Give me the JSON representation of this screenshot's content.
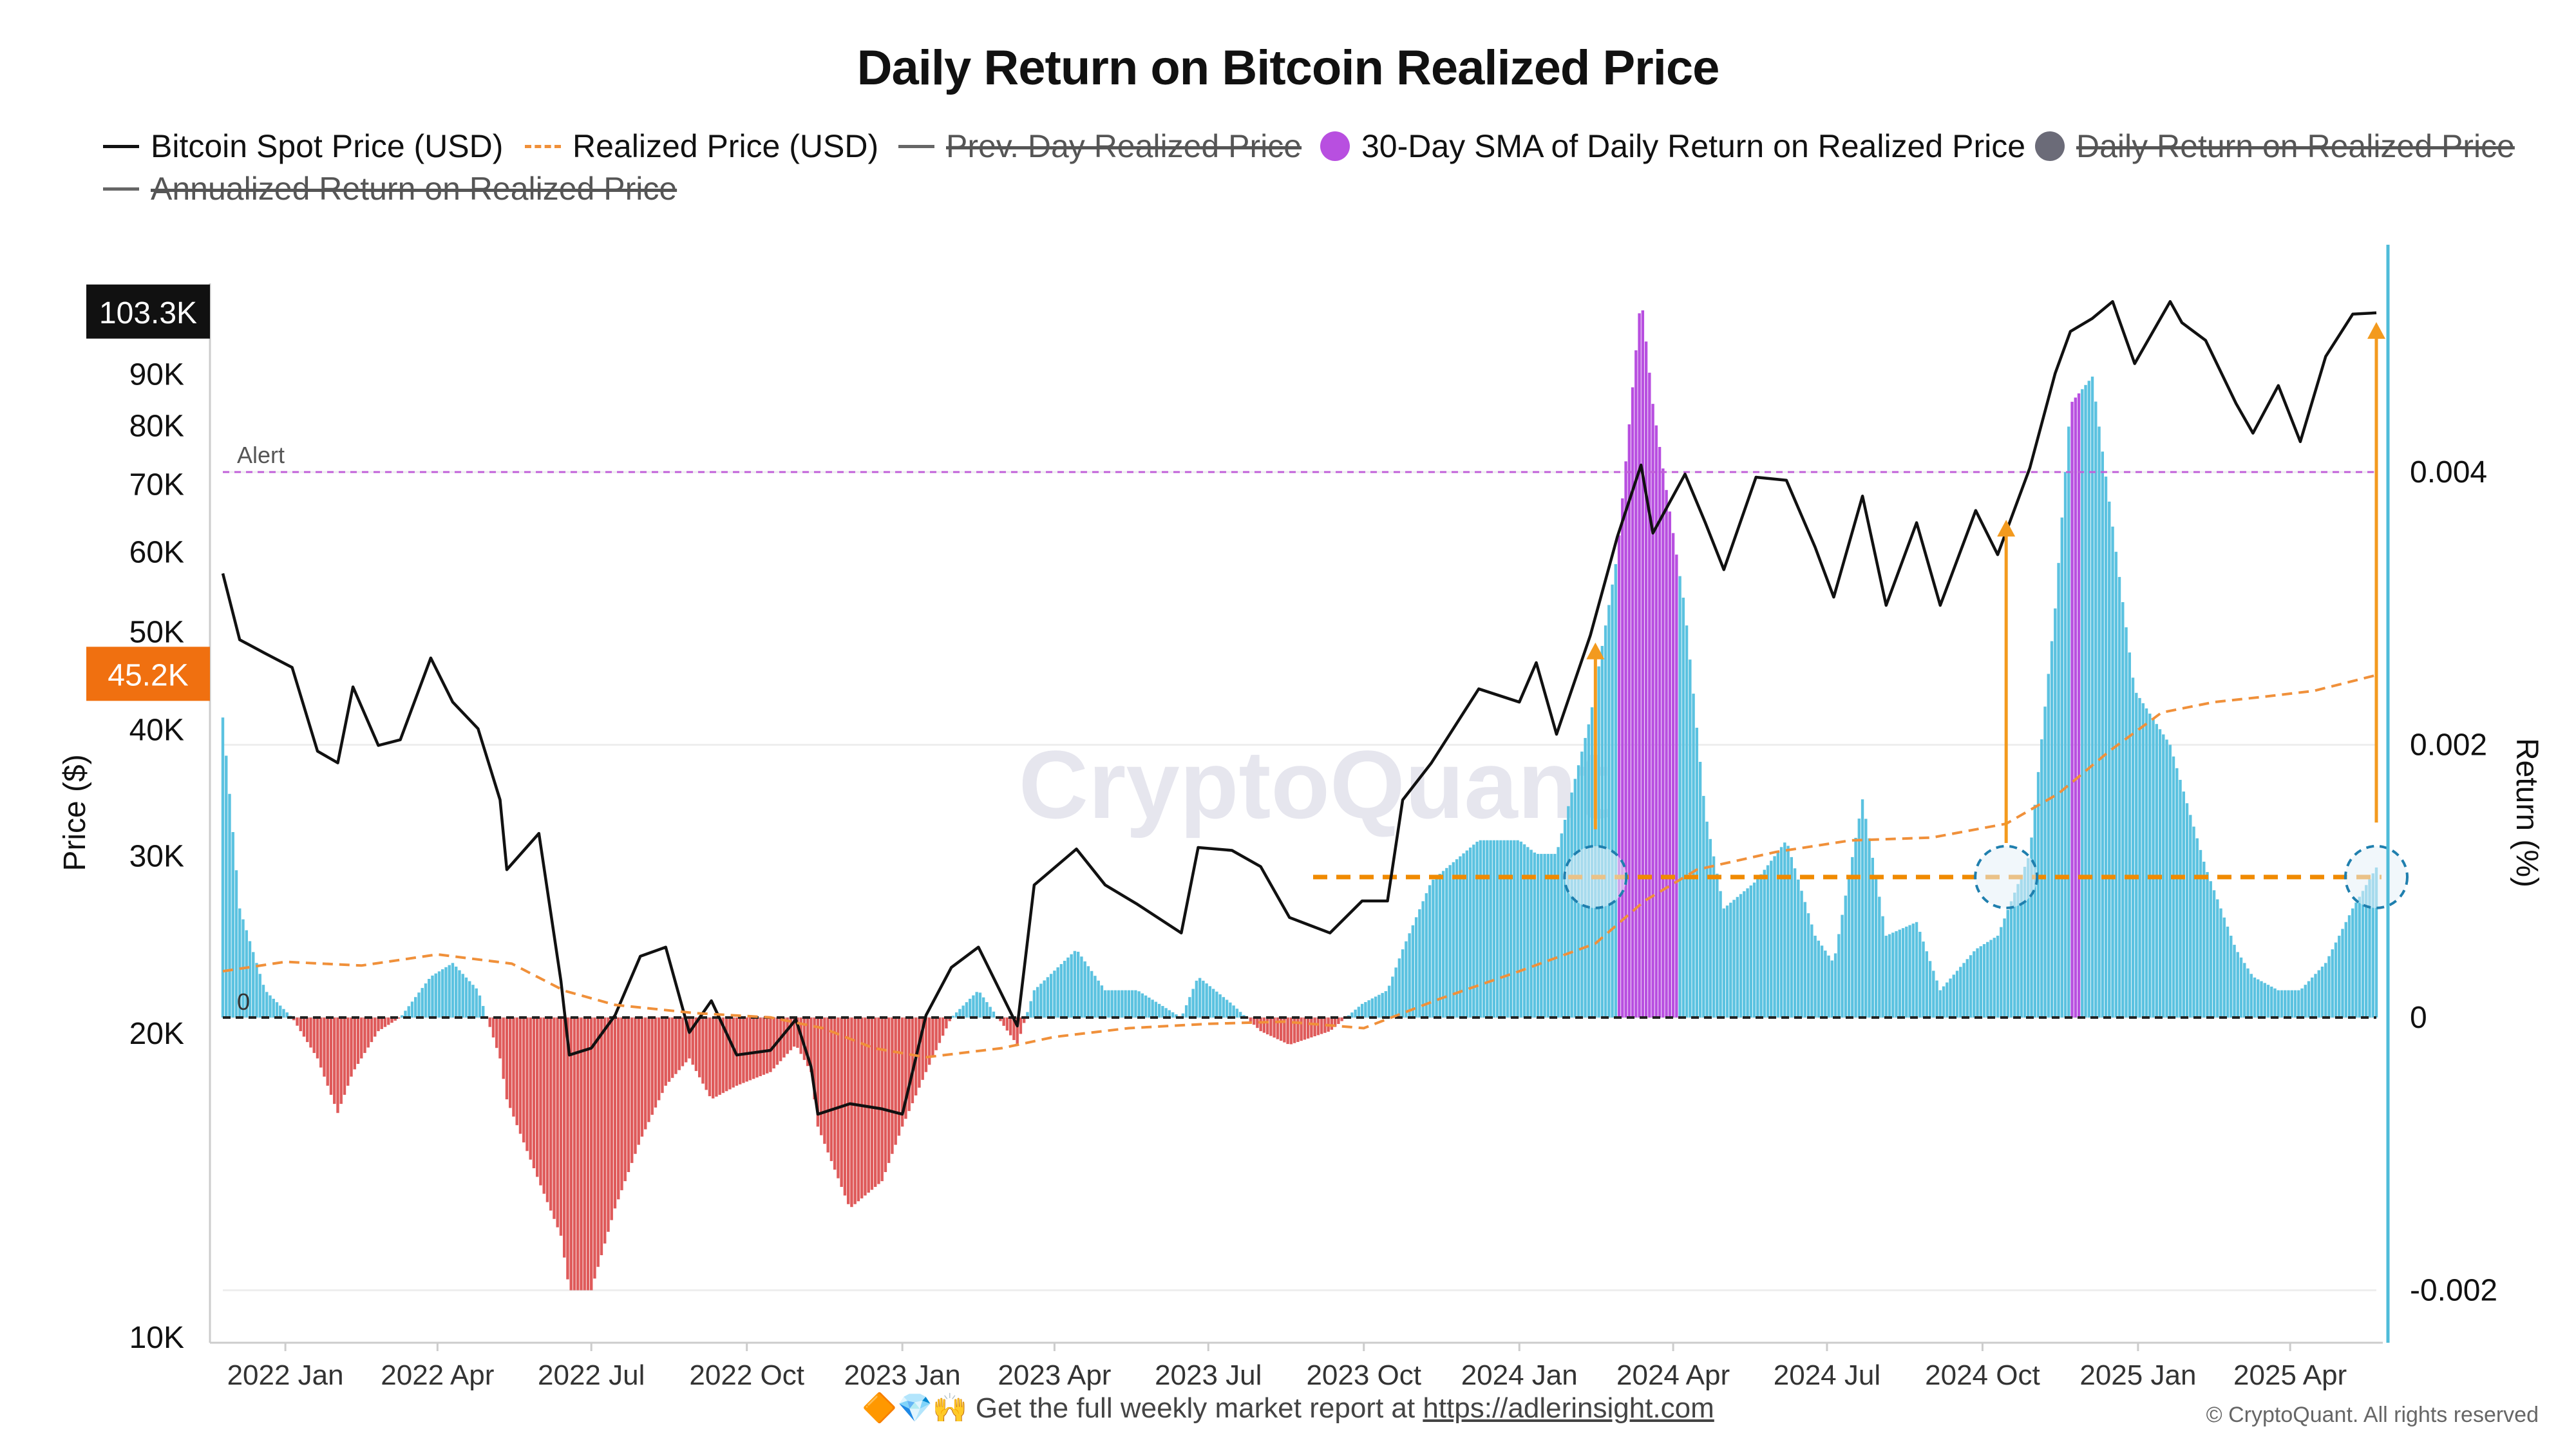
{
  "title": "Daily Return on Bitcoin Realized Price",
  "legend": [
    {
      "label": "Bitcoin Spot Price (USD)",
      "swatch": "line",
      "color": "#111111",
      "active": true
    },
    {
      "label": "Realized Price (USD)",
      "swatch": "dash",
      "color": "#f0903a",
      "active": true
    },
    {
      "label": "Prev. Day Realized Price",
      "swatch": "gray-line",
      "color": "#666666",
      "active": false
    },
    {
      "label": "30-Day SMA of Daily Return on Realized Price",
      "swatch": "dot",
      "color": "#b84fe0",
      "active": true
    },
    {
      "label": "Daily Return on Realized Price",
      "swatch": "dot",
      "color": "#6b6b78",
      "active": false
    },
    {
      "label": "Annualized Return on Realized Price",
      "swatch": "gray-line",
      "color": "#666666",
      "active": false
    }
  ],
  "watermark": "CryptoQuant",
  "footer": {
    "emoji": "🔶💎🙌",
    "text": "Get the full weekly market report at",
    "link": "https://adlerinsight.com"
  },
  "copyright": "© CryptoQuant. All rights reserved",
  "chart_data": {
    "type": "line",
    "x_ticks": [
      "2022 Jan",
      "2022 Apr",
      "2022 Jul",
      "2022 Oct",
      "2023 Jan",
      "2023 Apr",
      "2023 Jul",
      "2023 Oct",
      "2024 Jan",
      "2024 Apr",
      "2024 Jul",
      "2024 Oct",
      "2025 Jan",
      "2025 Apr"
    ],
    "x_range": [
      "2021-11-25",
      "2025-05-22"
    ],
    "y_left": {
      "label": "Price ($)",
      "scale": "log",
      "range": [
        10000,
        110000
      ],
      "ticks": [
        10000,
        20000,
        30000,
        40000,
        50000,
        60000,
        70000,
        80000,
        90000
      ],
      "tick_labels": [
        "10K",
        "20K",
        "30K",
        "40K",
        "50K",
        "60K",
        "70K",
        "80K",
        "90K"
      ]
    },
    "y_right": {
      "label": "Return (%)",
      "range": [
        -0.0024,
        0.0056
      ],
      "ticks": [
        -0.002,
        0,
        0.002,
        0.004
      ],
      "tick_labels": [
        "-0.002",
        "0",
        "0.002",
        "0.004"
      ]
    },
    "price_badges": [
      {
        "label": "103.3K",
        "value": 103300,
        "color": "#111111"
      },
      {
        "label": "45.2K",
        "value": 45200,
        "color": "#f07010"
      }
    ],
    "alert": {
      "label": "Alert",
      "value": 0.004,
      "color": "#c060d8"
    },
    "zero_label": "0",
    "threshold": {
      "value": 0.00103,
      "color": "#f08a00"
    },
    "series": [
      {
        "name": "Bitcoin Spot Price (USD)",
        "color": "#111111",
        "points": [
          [
            "2021-11-25",
            57000
          ],
          [
            "2021-12-05",
            49000
          ],
          [
            "2021-12-20",
            47500
          ],
          [
            "2022-01-05",
            46000
          ],
          [
            "2022-01-20",
            38000
          ],
          [
            "2022-02-01",
            37000
          ],
          [
            "2022-02-10",
            44000
          ],
          [
            "2022-02-25",
            38500
          ],
          [
            "2022-03-10",
            39000
          ],
          [
            "2022-03-28",
            47000
          ],
          [
            "2022-04-10",
            42500
          ],
          [
            "2022-04-25",
            40000
          ],
          [
            "2022-05-08",
            34000
          ],
          [
            "2022-05-12",
            29000
          ],
          [
            "2022-05-31",
            31500
          ],
          [
            "2022-06-13",
            22500
          ],
          [
            "2022-06-18",
            19000
          ],
          [
            "2022-07-01",
            19300
          ],
          [
            "2022-07-15",
            20800
          ],
          [
            "2022-07-30",
            23800
          ],
          [
            "2022-08-14",
            24300
          ],
          [
            "2022-08-28",
            20000
          ],
          [
            "2022-09-10",
            21500
          ],
          [
            "2022-09-25",
            19000
          ],
          [
            "2022-10-15",
            19200
          ],
          [
            "2022-10-30",
            20600
          ],
          [
            "2022-11-08",
            18500
          ],
          [
            "2022-11-12",
            16600
          ],
          [
            "2022-12-01",
            17000
          ],
          [
            "2022-12-20",
            16800
          ],
          [
            "2023-01-01",
            16600
          ],
          [
            "2023-01-15",
            20800
          ],
          [
            "2023-01-30",
            23200
          ],
          [
            "2023-02-15",
            24300
          ],
          [
            "2023-03-10",
            20300
          ],
          [
            "2023-03-20",
            28000
          ],
          [
            "2023-04-14",
            30400
          ],
          [
            "2023-05-01",
            28000
          ],
          [
            "2023-05-20",
            26800
          ],
          [
            "2023-06-15",
            25100
          ],
          [
            "2023-06-25",
            30500
          ],
          [
            "2023-07-15",
            30300
          ],
          [
            "2023-08-01",
            29200
          ],
          [
            "2023-08-18",
            26000
          ],
          [
            "2023-09-11",
            25100
          ],
          [
            "2023-09-30",
            27000
          ],
          [
            "2023-10-15",
            27000
          ],
          [
            "2023-10-24",
            34000
          ],
          [
            "2023-11-10",
            37000
          ],
          [
            "2023-12-08",
            43800
          ],
          [
            "2024-01-01",
            42500
          ],
          [
            "2024-01-11",
            46500
          ],
          [
            "2024-01-23",
            39500
          ],
          [
            "2024-02-12",
            49500
          ],
          [
            "2024-02-28",
            62000
          ],
          [
            "2024-03-13",
            73000
          ],
          [
            "2024-03-20",
            62500
          ],
          [
            "2024-04-08",
            71500
          ],
          [
            "2024-04-20",
            64000
          ],
          [
            "2024-05-01",
            57500
          ],
          [
            "2024-05-20",
            71000
          ],
          [
            "2024-06-07",
            70500
          ],
          [
            "2024-06-24",
            60500
          ],
          [
            "2024-07-05",
            54000
          ],
          [
            "2024-07-22",
            68000
          ],
          [
            "2024-08-05",
            53000
          ],
          [
            "2024-08-23",
            64000
          ],
          [
            "2024-09-06",
            53000
          ],
          [
            "2024-09-27",
            65800
          ],
          [
            "2024-10-10",
            59500
          ],
          [
            "2024-10-29",
            72500
          ],
          [
            "2024-11-13",
            90000
          ],
          [
            "2024-11-22",
            99000
          ],
          [
            "2024-12-05",
            102000
          ],
          [
            "2024-12-17",
            106000
          ],
          [
            "2024-12-30",
            92000
          ],
          [
            "2025-01-20",
            106000
          ],
          [
            "2025-01-27",
            101000
          ],
          [
            "2025-02-10",
            97000
          ],
          [
            "2025-02-28",
            84000
          ],
          [
            "2025-03-10",
            78500
          ],
          [
            "2025-03-25",
            87500
          ],
          [
            "2025-04-07",
            77000
          ],
          [
            "2025-04-22",
            93500
          ],
          [
            "2025-05-08",
            103000
          ],
          [
            "2025-05-22",
            103300
          ]
        ]
      },
      {
        "name": "Realized Price (USD)",
        "color": "#f0903a",
        "points": [
          [
            "2021-11-25",
            23000
          ],
          [
            "2022-01-01",
            23500
          ],
          [
            "2022-02-15",
            23300
          ],
          [
            "2022-04-01",
            23900
          ],
          [
            "2022-05-15",
            23400
          ],
          [
            "2022-06-15",
            22000
          ],
          [
            "2022-07-15",
            21300
          ],
          [
            "2022-09-01",
            20900
          ],
          [
            "2022-10-15",
            20700
          ],
          [
            "2022-11-15",
            20200
          ],
          [
            "2022-12-15",
            19300
          ],
          [
            "2023-01-15",
            18900
          ],
          [
            "2023-03-01",
            19300
          ],
          [
            "2023-04-01",
            19800
          ],
          [
            "2023-05-15",
            20200
          ],
          [
            "2023-07-01",
            20400
          ],
          [
            "2023-08-15",
            20500
          ],
          [
            "2023-10-01",
            20200
          ],
          [
            "2023-11-15",
            21600
          ],
          [
            "2024-01-01",
            23000
          ],
          [
            "2024-02-15",
            24500
          ],
          [
            "2024-03-15",
            27000
          ],
          [
            "2024-04-15",
            29000
          ],
          [
            "2024-06-01",
            30200
          ],
          [
            "2024-07-15",
            31000
          ],
          [
            "2024-09-01",
            31200
          ],
          [
            "2024-10-15",
            32200
          ],
          [
            "2024-11-15",
            34500
          ],
          [
            "2024-12-15",
            38000
          ],
          [
            "2025-01-15",
            41500
          ],
          [
            "2025-02-15",
            42500
          ],
          [
            "2025-03-15",
            43000
          ],
          [
            "2025-04-15",
            43600
          ],
          [
            "2025-05-22",
            45200
          ]
        ]
      }
    ],
    "bars": {
      "name": "30-Day SMA of Daily Return on Realized Price",
      "positive_color": "#5bc2e0",
      "negative_color": "#df5a5a",
      "highlight_color": "#b84fe0",
      "points": [
        [
          "2021-11-25",
          0.0022
        ],
        [
          "2021-12-05",
          0.0008
        ],
        [
          "2021-12-20",
          0.0002
        ],
        [
          "2022-01-05",
          0.0
        ],
        [
          "2022-01-20",
          -0.0003
        ],
        [
          "2022-02-01",
          -0.0007
        ],
        [
          "2022-02-10",
          -0.0004
        ],
        [
          "2022-02-25",
          -0.0001
        ],
        [
          "2022-03-10",
          0.0
        ],
        [
          "2022-03-28",
          0.0003
        ],
        [
          "2022-04-10",
          0.0004
        ],
        [
          "2022-04-25",
          0.0002
        ],
        [
          "2022-05-08",
          -0.0003
        ],
        [
          "2022-05-12",
          -0.0006
        ],
        [
          "2022-05-31",
          -0.0012
        ],
        [
          "2022-06-13",
          -0.0016
        ],
        [
          "2022-06-18",
          -0.002
        ],
        [
          "2022-07-01",
          -0.002
        ],
        [
          "2022-07-15",
          -0.0014
        ],
        [
          "2022-07-30",
          -0.0009
        ],
        [
          "2022-08-14",
          -0.0005
        ],
        [
          "2022-08-28",
          -0.0003
        ],
        [
          "2022-09-10",
          -0.0006
        ],
        [
          "2022-09-25",
          -0.0005
        ],
        [
          "2022-10-15",
          -0.0004
        ],
        [
          "2022-10-30",
          -0.0002
        ],
        [
          "2022-11-08",
          -0.0004
        ],
        [
          "2022-11-12",
          -0.0008
        ],
        [
          "2022-12-01",
          -0.0014
        ],
        [
          "2022-12-20",
          -0.0012
        ],
        [
          "2023-01-01",
          -0.0008
        ],
        [
          "2023-01-15",
          -0.0004
        ],
        [
          "2023-01-30",
          0.0
        ],
        [
          "2023-02-15",
          0.0002
        ],
        [
          "2023-03-10",
          -0.0002
        ],
        [
          "2023-03-20",
          0.0002
        ],
        [
          "2023-04-14",
          0.0005
        ],
        [
          "2023-05-01",
          0.0002
        ],
        [
          "2023-05-20",
          0.0002
        ],
        [
          "2023-06-15",
          0.0
        ],
        [
          "2023-06-25",
          0.0003
        ],
        [
          "2023-07-15",
          0.0001
        ],
        [
          "2023-08-01",
          -0.0001
        ],
        [
          "2023-08-18",
          -0.0002
        ],
        [
          "2023-09-11",
          -0.0001
        ],
        [
          "2023-09-30",
          0.0001
        ],
        [
          "2023-10-15",
          0.0002
        ],
        [
          "2023-10-24",
          0.0005
        ],
        [
          "2023-11-10",
          0.001
        ],
        [
          "2023-12-08",
          0.0013
        ],
        [
          "2024-01-01",
          0.0013
        ],
        [
          "2024-01-11",
          0.0012
        ],
        [
          "2024-01-23",
          0.0012
        ],
        [
          "2024-02-12",
          0.0022
        ],
        [
          "2024-02-28",
          0.0034
        ],
        [
          "2024-03-13",
          0.0053
        ],
        [
          "2024-03-20",
          0.0045
        ],
        [
          "2024-04-08",
          0.003
        ],
        [
          "2024-04-20",
          0.0015
        ],
        [
          "2024-05-01",
          0.0008
        ],
        [
          "2024-05-20",
          0.001
        ],
        [
          "2024-06-07",
          0.0013
        ],
        [
          "2024-06-24",
          0.0006
        ],
        [
          "2024-07-05",
          0.0004
        ],
        [
          "2024-07-22",
          0.0016
        ],
        [
          "2024-08-05",
          0.0006
        ],
        [
          "2024-08-23",
          0.0007
        ],
        [
          "2024-09-06",
          0.0002
        ],
        [
          "2024-09-27",
          0.0005
        ],
        [
          "2024-10-10",
          0.0006
        ],
        [
          "2024-10-29",
          0.0012
        ],
        [
          "2024-11-13",
          0.003
        ],
        [
          "2024-11-22",
          0.0045
        ],
        [
          "2024-12-05",
          0.0047
        ],
        [
          "2024-12-17",
          0.0036
        ],
        [
          "2024-12-30",
          0.0024
        ],
        [
          "2025-01-20",
          0.002
        ],
        [
          "2025-01-27",
          0.0017
        ],
        [
          "2025-02-10",
          0.0011
        ],
        [
          "2025-02-28",
          0.0005
        ],
        [
          "2025-03-10",
          0.0003
        ],
        [
          "2025-03-25",
          0.0002
        ],
        [
          "2025-04-07",
          0.0002
        ],
        [
          "2025-04-22",
          0.0004
        ],
        [
          "2025-05-08",
          0.0008
        ],
        [
          "2025-05-22",
          0.0011
        ]
      ],
      "highlights": [
        [
          "2024-02-28",
          "2024-04-03"
        ],
        [
          "2024-11-22",
          "2024-11-27"
        ]
      ]
    },
    "arrows": [
      {
        "x": "2024-02-15",
        "from": 0.00138,
        "to": 0.00275
      },
      {
        "x": "2024-10-15",
        "from": 0.00128,
        "to": 0.00365
      },
      {
        "x": "2025-05-22",
        "from": 0.00143,
        "to": 0.0051
      }
    ],
    "circles": [
      {
        "x": "2024-02-15",
        "y": 0.00103
      },
      {
        "x": "2024-10-15",
        "y": 0.00103
      },
      {
        "x": "2025-05-22",
        "y": 0.00103
      }
    ]
  }
}
